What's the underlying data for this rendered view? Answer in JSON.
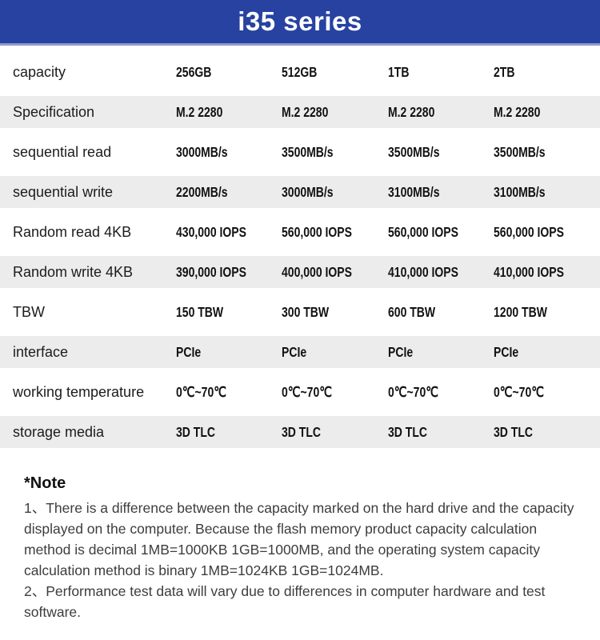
{
  "header": {
    "title": "i35 series"
  },
  "table": {
    "rows": [
      {
        "label": "capacity",
        "values": [
          "256GB",
          "512GB",
          "1TB",
          "2TB"
        ]
      },
      {
        "label": "Specification",
        "values": [
          "M.2 2280",
          "M.2 2280",
          "M.2 2280",
          "M.2 2280"
        ]
      },
      {
        "label": "sequential read",
        "values": [
          "3000MB/s",
          "3500MB/s",
          "3500MB/s",
          "3500MB/s"
        ]
      },
      {
        "label": "sequential write",
        "values": [
          "2200MB/s",
          "3000MB/s",
          "3100MB/s",
          "3100MB/s"
        ]
      },
      {
        "label": "Random read 4KB",
        "values": [
          "430,000 IOPS",
          "560,000 IOPS",
          "560,000 IOPS",
          "560,000 IOPS"
        ]
      },
      {
        "label": "Random write 4KB",
        "values": [
          "390,000 IOPS",
          "400,000 IOPS",
          "410,000 IOPS",
          "410,000 IOPS"
        ]
      },
      {
        "label": "TBW",
        "values": [
          "150 TBW",
          "300 TBW",
          "600 TBW",
          "1200 TBW"
        ]
      },
      {
        "label": "interface",
        "values": [
          "PCIe",
          "PCIe",
          "PCIe",
          "PCIe"
        ]
      },
      {
        "label": "working temperature",
        "values": [
          "0℃~70℃",
          "0℃~70℃",
          "0℃~70℃",
          "0℃~70℃"
        ]
      },
      {
        "label": "storage media",
        "values": [
          "3D TLC",
          "3D TLC",
          "3D TLC",
          "3D TLC"
        ]
      }
    ]
  },
  "note": {
    "heading": "*Note",
    "items": [
      "1、There is a difference between the capacity marked on the hard drive and the capacity displayed on the computer. Because the flash memory product capacity calculation method is decimal 1MB=1000KB 1GB=1000MB, and the operating system capacity calculation method is binary 1MB=1024KB 1GB=1024MB.",
      "2、Performance test data will vary due to differences in computer hardware and test software."
    ]
  },
  "colors": {
    "header_bg": "#2742a0",
    "stripe": "#ececec",
    "title_text": "#ffffff",
    "label_text": "#1c1c1c",
    "value_text": "#121212",
    "note_text": "#3d3d3d"
  }
}
